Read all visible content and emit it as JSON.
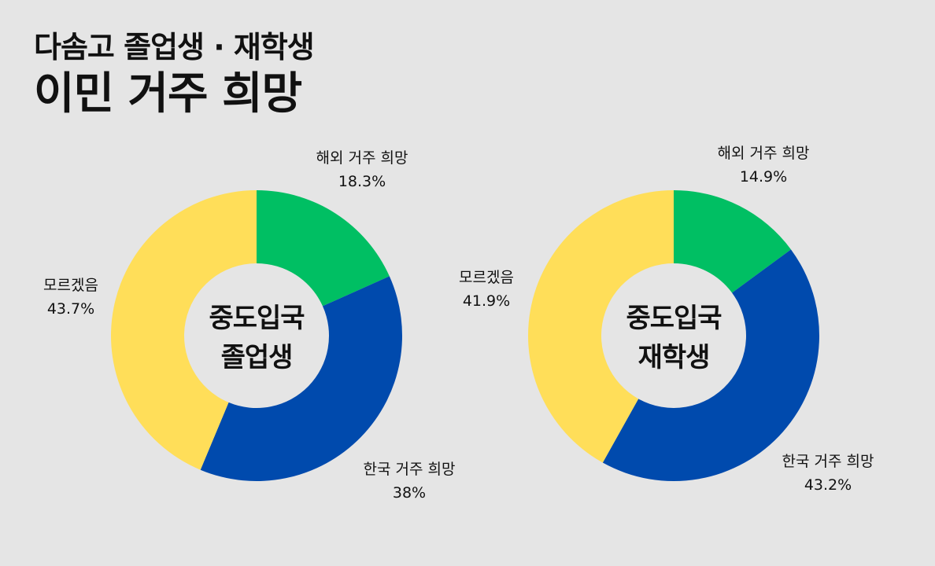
{
  "header": {
    "subtitle": "다솜고 졸업생 · 재학생",
    "title": "이민 거주 희망"
  },
  "colors": {
    "background": "#E5E5E5",
    "overseas": "#00BF63",
    "korea": "#004AAD",
    "unknown": "#FFDE59"
  },
  "charts": [
    {
      "center_line1": "중도입국",
      "center_line2": "졸업생",
      "labels": {
        "overseas": {
          "name": "해외 거주 희망",
          "value": "18.3%"
        },
        "korea": {
          "name": "한국 거주 희망",
          "value": "38%"
        },
        "unknown": {
          "name": "모르겠음",
          "value": "43.7%"
        }
      }
    },
    {
      "center_line1": "중도입국",
      "center_line2": "재학생",
      "labels": {
        "overseas": {
          "name": "해외 거주 희망",
          "value": "14.9%"
        },
        "korea": {
          "name": "한국 거주 희망",
          "value": "43.2%"
        },
        "unknown": {
          "name": "모르겠음",
          "value": "41.9%"
        }
      }
    }
  ],
  "chart_data": [
    {
      "type": "pie",
      "variant": "donut",
      "title": "중도입국 졸업생",
      "categories": [
        "해외 거주 희망",
        "한국 거주 희망",
        "모르겠음"
      ],
      "values": [
        18.3,
        38.0,
        43.7
      ],
      "colors": [
        "#00BF63",
        "#004AAD",
        "#FFDE59"
      ],
      "start_angle": "12 o'clock, clockwise",
      "legend": "none (direct labels)"
    },
    {
      "type": "pie",
      "variant": "donut",
      "title": "중도입국 재학생",
      "categories": [
        "해외 거주 희망",
        "한국 거주 희망",
        "모르겠음"
      ],
      "values": [
        14.9,
        43.2,
        41.9
      ],
      "colors": [
        "#00BF63",
        "#004AAD",
        "#FFDE59"
      ],
      "start_angle": "12 o'clock, clockwise",
      "legend": "none (direct labels)"
    }
  ]
}
